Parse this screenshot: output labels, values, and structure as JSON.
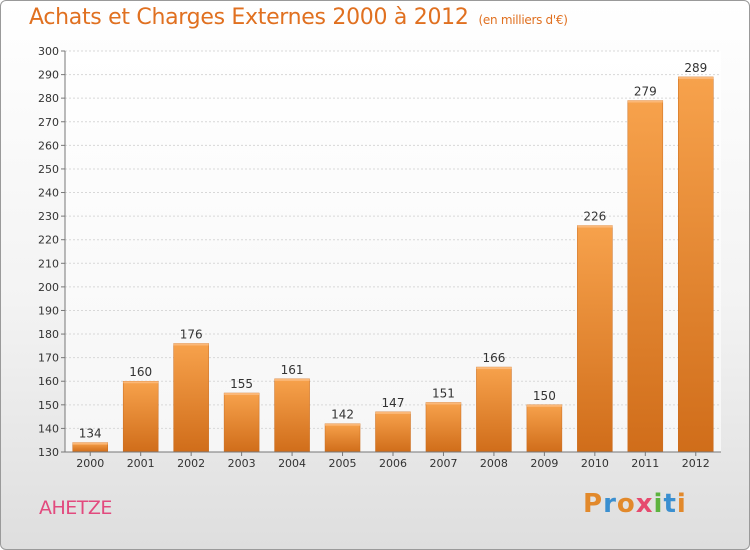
{
  "title": "Achats et Charges Externes 2000 à 2012",
  "unit": "(en milliers d'€)",
  "commune": "AHETZE",
  "logo": {
    "text": "Proxiti",
    "colors": [
      "#e2892b",
      "#3a8fd0",
      "#e2892b",
      "#e64a6e",
      "#5db33f",
      "#3a8fd0",
      "#e2892b"
    ]
  },
  "chart_data": {
    "type": "bar",
    "categories": [
      "2000",
      "2001",
      "2002",
      "2003",
      "2004",
      "2005",
      "2006",
      "2007",
      "2008",
      "2009",
      "2010",
      "2011",
      "2012"
    ],
    "values": [
      134,
      160,
      176,
      155,
      161,
      142,
      147,
      151,
      166,
      150,
      226,
      279,
      289
    ],
    "ylim": [
      130,
      300
    ],
    "yticks": [
      130,
      140,
      150,
      160,
      170,
      180,
      190,
      200,
      210,
      220,
      230,
      240,
      250,
      260,
      270,
      280,
      290,
      300
    ],
    "grid": true,
    "bar_color": "#f0903a",
    "title": "Achats et Charges Externes 2000 à 2012",
    "xlabel": "",
    "ylabel": ""
  }
}
